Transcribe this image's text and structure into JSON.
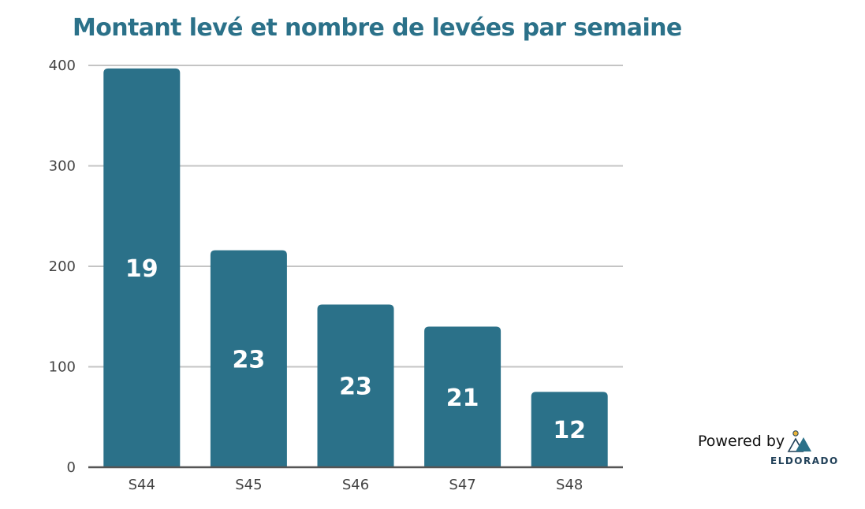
{
  "chart_data": {
    "type": "bar",
    "title": "Montant levé et nombre de levées par semaine",
    "categories": [
      "S44",
      "S45",
      "S46",
      "S47",
      "S48"
    ],
    "values": [
      397,
      216,
      162,
      140,
      75
    ],
    "data_labels": [
      "19",
      "23",
      "23",
      "21",
      "12"
    ],
    "yticks": [
      "0",
      "100",
      "200",
      "300",
      "400"
    ],
    "ylim": [
      0,
      400
    ],
    "xlabel": "",
    "ylabel": "",
    "grid": true,
    "bar_color": "#2b7189",
    "title_color": "#2b7189"
  },
  "branding": {
    "powered_by": "Powered by",
    "brand_name": "ELDORADO",
    "brand_icon": "mountain-sun-logo"
  }
}
